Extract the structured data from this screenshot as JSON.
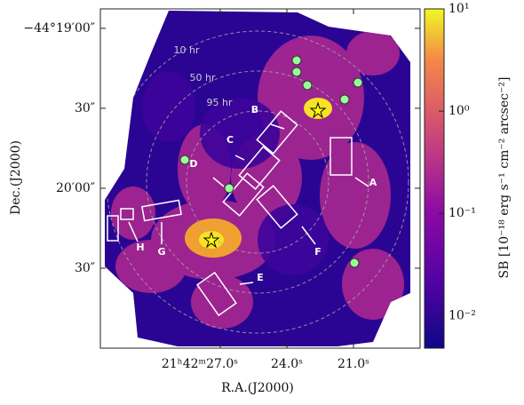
{
  "chart_data": {
    "type": "image",
    "x_label": "R.A.(J2000)",
    "y_label": "Dec.(J2000)",
    "xlim": [
      32.4,
      18.0
    ],
    "xticks": [
      {
        "value": 27.0,
        "label": "21ʰ42ᵐ27.0ˢ"
      },
      {
        "value": 24.0,
        "label": "24.0ˢ"
      },
      {
        "value": 21.0,
        "label": "21.0ˢ"
      }
    ],
    "ylim": [
      -159660,
      -159532.7
    ],
    "yticks": [
      {
        "value": -159540,
        "label": "−44°19′00″"
      },
      {
        "value": -159570,
        "label": "30″"
      },
      {
        "value": -159600,
        "label": "20′00″"
      },
      {
        "value": -159630,
        "label": "30″"
      }
    ],
    "colorbar": {
      "label": "SB [10⁻¹⁸ erg s⁻¹ cm⁻² arcsec⁻²]",
      "log": true,
      "lim": [
        0.0048,
        10
      ],
      "ticks": [
        {
          "value": 0.01,
          "label": "10⁻²"
        },
        {
          "value": 0.1,
          "label": "10⁻¹"
        },
        {
          "value": 1,
          "label": "10⁰"
        },
        {
          "value": 10,
          "label": "10¹"
        }
      ]
    },
    "annotations": [
      "10 hr",
      "50 hr",
      "95 hr",
      "A",
      "B",
      "C",
      "D",
      "E",
      "F",
      "G",
      "H"
    ]
  }
}
